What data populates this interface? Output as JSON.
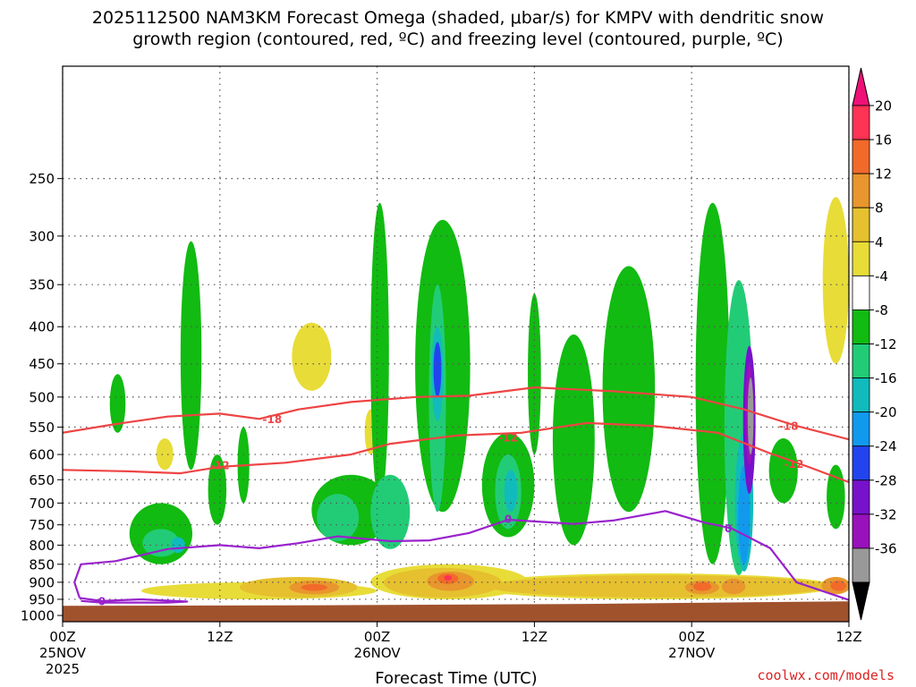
{
  "chart_data": {
    "type": "heatmap",
    "title_line1": "2025112500 NAM3KM Forecast Omega (shaded, μbar/s) for KMPV with dendritic snow",
    "title_line2": "growth region (contoured, red, ºC) and freezing level (contoured, purple, ºC)",
    "xlabel": "Forecast Time (UTC)",
    "ylabel": "",
    "credit": "coolwx.com/models",
    "credit_color": "#dd2222",
    "x_range_hours": [
      0,
      60
    ],
    "y_range_hpa": [
      1020,
      175
    ],
    "x_ticks": [
      {
        "hour": 0,
        "l1": "00Z",
        "l2": "25NOV",
        "l3": "2025"
      },
      {
        "hour": 12,
        "l1": "12Z",
        "l2": "",
        "l3": ""
      },
      {
        "hour": 24,
        "l1": "00Z",
        "l2": "26NOV",
        "l3": ""
      },
      {
        "hour": 36,
        "l1": "12Z",
        "l2": "",
        "l3": ""
      },
      {
        "hour": 48,
        "l1": "00Z",
        "l2": "27NOV",
        "l3": ""
      },
      {
        "hour": 60,
        "l1": "12Z",
        "l2": "",
        "l3": ""
      }
    ],
    "y_ticks": [
      250,
      300,
      350,
      400,
      450,
      500,
      550,
      600,
      650,
      700,
      750,
      800,
      850,
      900,
      950,
      1000
    ],
    "grid": true,
    "terrain_color": "#a0522d",
    "terrain": [
      [
        0,
        970
      ],
      [
        20,
        968
      ],
      [
        40,
        964
      ],
      [
        50,
        960
      ],
      [
        60,
        956
      ]
    ],
    "colorbar": {
      "labels": [
        "20",
        "16",
        "12",
        "8",
        "4",
        "-4",
        "-8",
        "-12",
        "-16",
        "-20",
        "-24",
        "-28",
        "-32",
        "-36"
      ],
      "colors": [
        "#ff3355",
        "#f26a2a",
        "#e8962d",
        "#e6c02f",
        "#e8dc38",
        "#ffffff",
        "#11bb11",
        "#22cc77",
        "#11bbbb",
        "#1199ee",
        "#2244ee",
        "#7711cc",
        "#9911bb",
        "#999999"
      ],
      "top_cap": "#ee1177",
      "bottom_cap": "#000000"
    },
    "omega_cells": [
      {
        "x": 7.5,
        "y0": 700,
        "y1": 850,
        "w": 4.8,
        "v": -8
      },
      {
        "x": 7.5,
        "y0": 760,
        "y1": 830,
        "w": 2.8,
        "v": -12
      },
      {
        "x": 8.8,
        "y0": 780,
        "y1": 820,
        "w": 1.1,
        "v": -16
      },
      {
        "x": 4.2,
        "y0": 465,
        "y1": 560,
        "w": 1.2,
        "v": -8
      },
      {
        "x": 9.8,
        "y0": 305,
        "y1": 630,
        "w": 1.6,
        "v": -8
      },
      {
        "x": 11.8,
        "y0": 600,
        "y1": 750,
        "w": 1.4,
        "v": -8
      },
      {
        "x": 13.8,
        "y0": 550,
        "y1": 700,
        "w": 0.9,
        "v": -8
      },
      {
        "x": 22.0,
        "y0": 640,
        "y1": 800,
        "w": 6.0,
        "v": -8
      },
      {
        "x": 21.0,
        "y0": 680,
        "y1": 790,
        "w": 3.2,
        "v": -12
      },
      {
        "x": 25.0,
        "y0": 640,
        "y1": 810,
        "w": 3.0,
        "v": -12
      },
      {
        "x": 24.2,
        "y0": 270,
        "y1": 700,
        "w": 1.4,
        "v": -8
      },
      {
        "x": 29.0,
        "y0": 285,
        "y1": 720,
        "w": 4.2,
        "v": -8
      },
      {
        "x": 28.6,
        "y0": 350,
        "y1": 720,
        "w": 1.3,
        "v": -12
      },
      {
        "x": 28.6,
        "y0": 400,
        "y1": 540,
        "w": 0.9,
        "v": -16
      },
      {
        "x": 28.6,
        "y0": 420,
        "y1": 500,
        "w": 0.6,
        "v": -24
      },
      {
        "x": 34.0,
        "y0": 560,
        "y1": 780,
        "w": 4.0,
        "v": -8
      },
      {
        "x": 34.0,
        "y0": 600,
        "y1": 760,
        "w": 2.0,
        "v": -12
      },
      {
        "x": 34.2,
        "y0": 630,
        "y1": 720,
        "w": 1.0,
        "v": -16
      },
      {
        "x": 36.0,
        "y0": 360,
        "y1": 600,
        "w": 1.0,
        "v": -8
      },
      {
        "x": 39.0,
        "y0": 410,
        "y1": 800,
        "w": 3.2,
        "v": -8
      },
      {
        "x": 43.2,
        "y0": 330,
        "y1": 720,
        "w": 4.0,
        "v": -8
      },
      {
        "x": 49.6,
        "y0": 270,
        "y1": 850,
        "w": 2.6,
        "v": -8
      },
      {
        "x": 51.6,
        "y0": 345,
        "y1": 880,
        "w": 2.2,
        "v": -12
      },
      {
        "x": 52.0,
        "y0": 560,
        "y1": 870,
        "w": 1.4,
        "v": -16
      },
      {
        "x": 52.0,
        "y0": 620,
        "y1": 850,
        "w": 0.9,
        "v": -20
      },
      {
        "x": 52.4,
        "y0": 425,
        "y1": 680,
        "w": 0.95,
        "v": -28
      },
      {
        "x": 52.4,
        "y0": 450,
        "y1": 620,
        "w": 0.6,
        "v": -32
      },
      {
        "x": 52.5,
        "y0": 470,
        "y1": 600,
        "w": 0.45,
        "v": -36
      },
      {
        "x": 55.0,
        "y0": 570,
        "y1": 700,
        "w": 2.2,
        "v": -8
      },
      {
        "x": 59.0,
        "y0": 620,
        "y1": 760,
        "w": 1.4,
        "v": -8
      },
      {
        "x": 7.8,
        "y0": 570,
        "y1": 630,
        "w": 1.3,
        "v": 4
      },
      {
        "x": 19.0,
        "y0": 395,
        "y1": 490,
        "w": 3.0,
        "v": 4
      },
      {
        "x": 23.5,
        "y0": 520,
        "y1": 600,
        "w": 0.9,
        "v": 4
      },
      {
        "x": 59.0,
        "y0": 265,
        "y1": 450,
        "w": 2.0,
        "v": 4
      },
      {
        "x": 15.0,
        "y0": 900,
        "y1": 950,
        "w": 18.0,
        "v": 4
      },
      {
        "x": 29.5,
        "y0": 850,
        "y1": 950,
        "w": 12.0,
        "v": 4
      },
      {
        "x": 45.0,
        "y0": 875,
        "y1": 950,
        "w": 28.0,
        "v": 4
      },
      {
        "x": 18.0,
        "y0": 885,
        "y1": 945,
        "w": 9.0,
        "v": 8
      },
      {
        "x": 29.0,
        "y0": 860,
        "y1": 945,
        "w": 9.0,
        "v": 8
      },
      {
        "x": 45.5,
        "y0": 880,
        "y1": 945,
        "w": 26.0,
        "v": 8
      },
      {
        "x": 19.2,
        "y0": 895,
        "y1": 935,
        "w": 3.8,
        "v": 12
      },
      {
        "x": 29.6,
        "y0": 870,
        "y1": 925,
        "w": 3.6,
        "v": 12
      },
      {
        "x": 48.8,
        "y0": 895,
        "y1": 935,
        "w": 2.6,
        "v": 12
      },
      {
        "x": 51.2,
        "y0": 890,
        "y1": 935,
        "w": 1.8,
        "v": 12
      },
      {
        "x": 59.0,
        "y0": 885,
        "y1": 935,
        "w": 2.2,
        "v": 12
      },
      {
        "x": 19.2,
        "y0": 905,
        "y1": 925,
        "w": 2.0,
        "v": 16
      },
      {
        "x": 29.4,
        "y0": 875,
        "y1": 905,
        "w": 1.6,
        "v": 16
      },
      {
        "x": 48.8,
        "y0": 900,
        "y1": 925,
        "w": 1.4,
        "v": 16
      },
      {
        "x": 59.2,
        "y0": 895,
        "y1": 925,
        "w": 1.2,
        "v": 16
      },
      {
        "x": 29.4,
        "y0": 880,
        "y1": 895,
        "w": 0.6,
        "v": 20
      }
    ],
    "contours": [
      {
        "name": "-18 C isotherm",
        "label": "-18",
        "color": "#ee4444",
        "points": [
          [
            0,
            560
          ],
          [
            4,
            545
          ],
          [
            8,
            532
          ],
          [
            12,
            527
          ],
          [
            15,
            536
          ],
          [
            18,
            520
          ],
          [
            22,
            508
          ],
          [
            27,
            500
          ],
          [
            31,
            498
          ],
          [
            36,
            485
          ],
          [
            42,
            491
          ],
          [
            48,
            500
          ],
          [
            52,
            520
          ],
          [
            56,
            548
          ],
          [
            60,
            572
          ]
        ],
        "label_positions": [
          [
            16.0,
            536
          ],
          [
            55.4,
            548
          ]
        ]
      },
      {
        "name": "-12 C isotherm",
        "label": "-12",
        "color": "#ee4444",
        "points": [
          [
            0,
            630
          ],
          [
            5,
            633
          ],
          [
            9,
            637
          ],
          [
            12,
            624
          ],
          [
            17,
            616
          ],
          [
            22,
            600
          ],
          [
            25,
            580
          ],
          [
            30,
            565
          ],
          [
            35,
            560
          ],
          [
            40,
            543
          ],
          [
            45,
            548
          ],
          [
            50,
            560
          ],
          [
            54,
            598
          ],
          [
            57,
            625
          ],
          [
            60,
            655
          ]
        ],
        "label_positions": [
          [
            12.0,
            621
          ],
          [
            34.0,
            568
          ],
          [
            55.8,
            618
          ]
        ]
      },
      {
        "name": "0 C freezing level",
        "label": "0",
        "color": "#9922cc",
        "points": [
          [
            1.3,
            946
          ],
          [
            0.9,
            900
          ],
          [
            1.4,
            850
          ],
          [
            4,
            842
          ],
          [
            8,
            810
          ],
          [
            12,
            800
          ],
          [
            15,
            808
          ],
          [
            18,
            795
          ],
          [
            21,
            778
          ],
          [
            25,
            790
          ],
          [
            28,
            788
          ],
          [
            31,
            770
          ],
          [
            34,
            738
          ],
          [
            36,
            742
          ],
          [
            39,
            748
          ],
          [
            42,
            740
          ],
          [
            46,
            718
          ],
          [
            49,
            745
          ],
          [
            51,
            758
          ],
          [
            54,
            808
          ],
          [
            56,
            900
          ],
          [
            60,
            952
          ]
        ],
        "label_positions": [
          [
            34.0,
            736
          ],
          [
            50.8,
            758
          ],
          [
            3.0,
            955
          ]
        ]
      },
      {
        "name": "0 C lower branch",
        "label": "",
        "color": "#9922cc",
        "points": [
          [
            1.3,
            946
          ],
          [
            3,
            955
          ],
          [
            6,
            950
          ],
          [
            9.5,
            957
          ],
          [
            8,
            960
          ],
          [
            3,
            960
          ],
          [
            1.4,
            955
          ]
        ],
        "label_positions": []
      }
    ]
  }
}
